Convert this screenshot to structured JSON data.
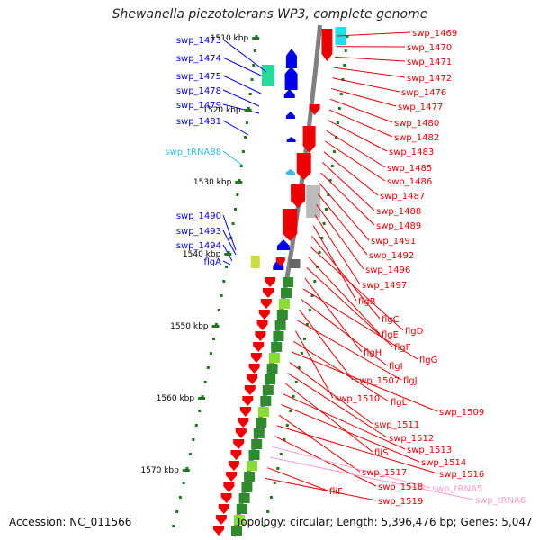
{
  "title": "Shewanella piezotolerans WP3, complete genome",
  "accession_text": "Accession: NC_011566",
  "topology_text": "Topology: circular; Length: 5,396,476 bp; Genes: 5,047",
  "colors": {
    "forward_gene": "#0000ee",
    "reverse_gene": "#ee0000",
    "trna_forward": "#33bbee",
    "trna_reverse": "#ff99cc",
    "cds_green": "#2e8b2e",
    "cds_light": "#88dd33",
    "cds_cyan": "#22ddee",
    "cds_gray": "#bbbbbb",
    "backbone": "#808080",
    "tick": "#1a7a1a"
  },
  "scale_ticks": [
    "1510 kbp",
    "1520 kbp",
    "1530 kbp",
    "1540 kbp",
    "1550 kbp",
    "1560 kbp",
    "1570 kbp"
  ],
  "forward_labels": [
    "swp_1473",
    "swp_1474",
    "swp_1475",
    "swp_1478",
    "swp_1479",
    "swp_1481",
    "swp_tRNA88",
    "swp_1490",
    "swp_1493",
    "swp_1494",
    "flgA"
  ],
  "reverse_labels": [
    "swp_1469",
    "swp_1470",
    "swp_1471",
    "swp_1472",
    "swp_1476",
    "swp_1477",
    "swp_1480",
    "swp_1482",
    "swp_1483",
    "swp_1485",
    "swp_1486",
    "swp_1487",
    "swp_1488",
    "swp_1489",
    "swp_1491",
    "swp_1492",
    "swp_1496",
    "swp_1497",
    "flgB",
    "flgC",
    "flgD",
    "flgE",
    "flgF",
    "flgH",
    "flgG",
    "flgI",
    "swp_1507",
    "flgJ",
    "swp_1510",
    "flgL",
    "swp_1509",
    "swp_1511",
    "swp_1512",
    "fliS",
    "swp_1513",
    "swp_1514",
    "swp_1517",
    "swp_1516",
    "swp_1518",
    "swp_tRNA5",
    "swp_tRNA6",
    "fliF",
    "swp_1519"
  ]
}
